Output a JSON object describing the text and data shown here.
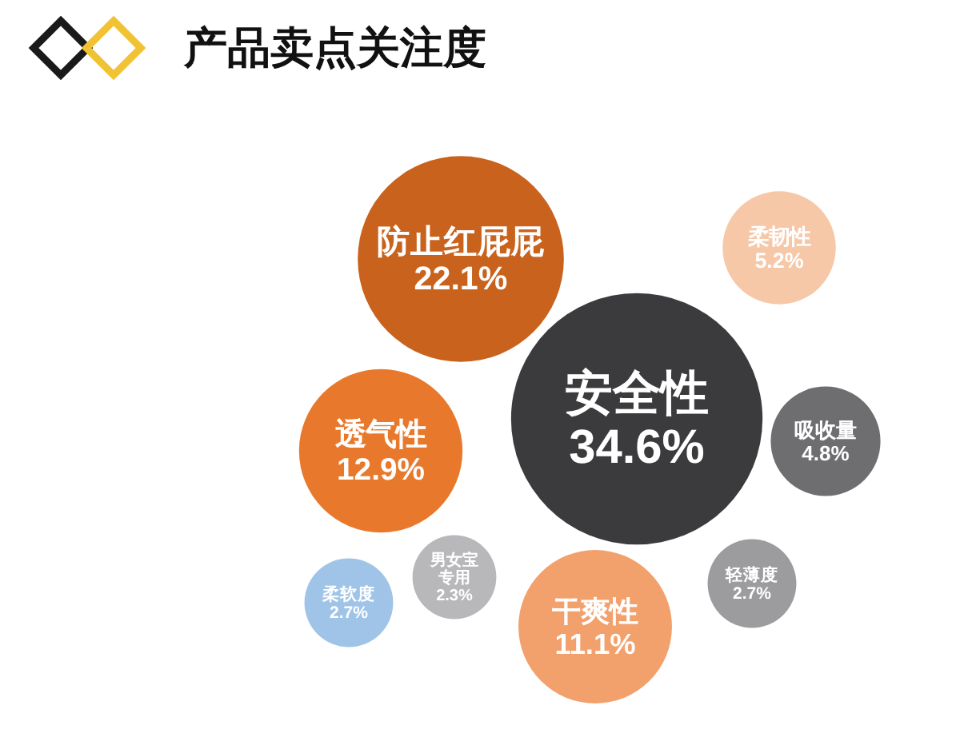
{
  "chart_data": {
    "type": "other",
    "title": "产品卖点关注度",
    "categories": [
      "安全性",
      "防止红屁屁",
      "透气性",
      "干爽性",
      "柔韧性",
      "吸收量",
      "轻薄度",
      "柔软度",
      "男女宝专用"
    ],
    "values": [
      34.6,
      22.1,
      12.9,
      11.1,
      5.2,
      4.8,
      2.7,
      2.7,
      2.3
    ],
    "value_labels": [
      "34.6%",
      "22.1%",
      "12.9%",
      "11.1%",
      "5.2%",
      "4.8%",
      "2.7%",
      "2.7%",
      "2.3%"
    ],
    "colors": [
      "#3b3a3c",
      "#c9621c",
      "#e8792c",
      "#f2a06c",
      "#f6c8a8",
      "#6e6d70",
      "#9c9b9e",
      "#9fc4e8",
      "#b8b8ba"
    ]
  }
}
